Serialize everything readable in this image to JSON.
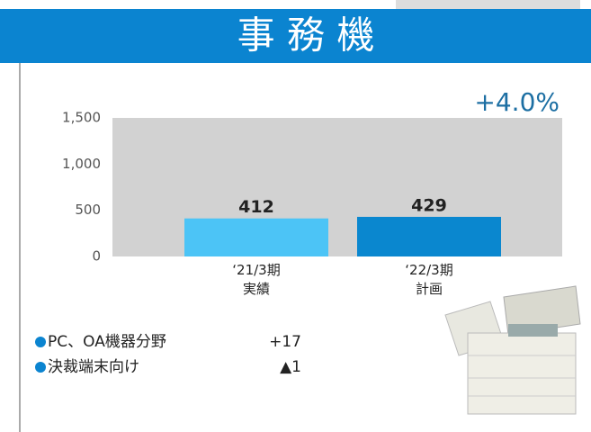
{
  "chart_data": {
    "type": "bar",
    "title": "事 務 機",
    "categories": [
      "‘21/3期\n実績",
      "‘22/3期\n計画"
    ],
    "values": [
      412,
      429
    ],
    "colors": [
      "#4cc4f6",
      "#0a87cf"
    ],
    "ylim": [
      0,
      1500
    ],
    "yticks": [
      0,
      500,
      {
        "value": 1000,
        "label": "1,000"
      },
      {
        "value": 1500,
        "label": "1,500"
      }
    ],
    "grid": false,
    "annotation": "+4.0%"
  },
  "notes": [
    {
      "label": "PC、OA機器分野",
      "value": "+17"
    },
    {
      "label": "決裁端末向け",
      "value": "▲1"
    }
  ]
}
